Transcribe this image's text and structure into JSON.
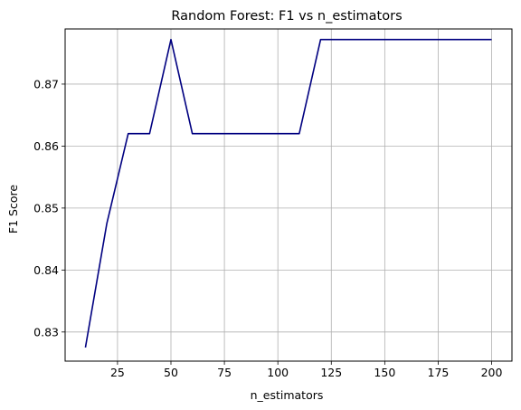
{
  "chart_data": {
    "type": "line",
    "title": "Random Forest: F1 vs n_estimators",
    "xlabel": "n_estimators",
    "ylabel": "F1 Score",
    "xlim": [
      0.5,
      209.5
    ],
    "ylim": [
      0.8253,
      0.8789
    ],
    "grid": true,
    "legend": "none",
    "x_ticks": [
      25,
      50,
      75,
      100,
      125,
      150,
      175,
      200
    ],
    "x_tick_labels": [
      "25",
      "50",
      "75",
      "100",
      "125",
      "150",
      "175",
      "200"
    ],
    "y_ticks": [
      0.83,
      0.84,
      0.85,
      0.86,
      0.87
    ],
    "y_tick_labels": [
      "0.83",
      "0.84",
      "0.85",
      "0.86",
      "0.87"
    ],
    "series": [
      {
        "color": "#000080",
        "x": [
          10,
          20,
          30,
          40,
          50,
          60,
          70,
          80,
          90,
          100,
          110,
          120,
          130,
          140,
          150,
          160,
          170,
          180,
          190,
          200
        ],
        "values": [
          0.8275,
          0.8475,
          0.862,
          0.862,
          0.8772,
          0.862,
          0.862,
          0.862,
          0.862,
          0.862,
          0.862,
          0.8772,
          0.8772,
          0.8772,
          0.8772,
          0.8772,
          0.8772,
          0.8772,
          0.8772,
          0.8772
        ]
      }
    ]
  }
}
